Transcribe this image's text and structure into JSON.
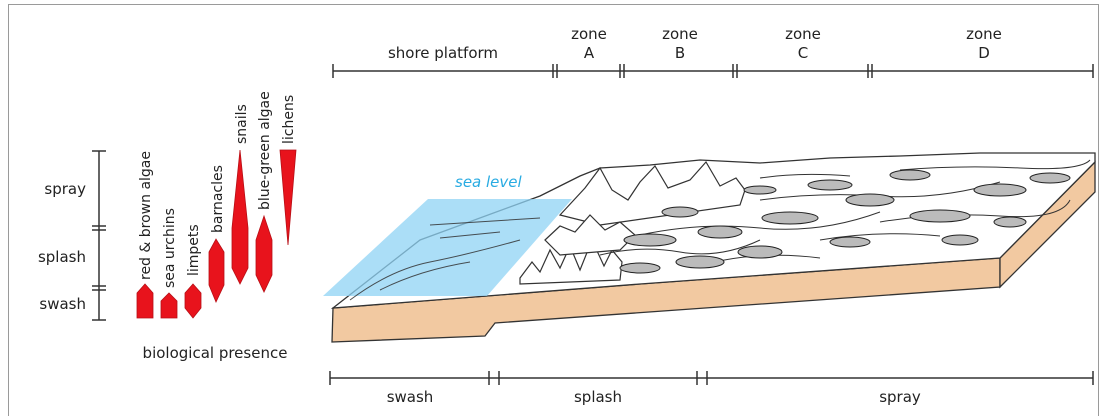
{
  "top_zones": [
    {
      "line1": "",
      "line2": "shore platform"
    },
    {
      "line1": "zone",
      "line2": "A"
    },
    {
      "line1": "zone",
      "line2": "B"
    },
    {
      "line1": "zone",
      "line2": "C"
    },
    {
      "line1": "zone",
      "line2": "D"
    }
  ],
  "bottom_zones": [
    "swash",
    "splash",
    "spray"
  ],
  "left_zones": [
    "spray",
    "splash",
    "swash"
  ],
  "organisms": [
    "red & brown algae",
    "sea urchins",
    "limpets",
    "barnacles",
    "snails",
    "blue-green algae",
    "lichens"
  ],
  "sea_level_label": "sea level",
  "biological_presence_label": "biological presence",
  "colors": {
    "organism": "#e8131c",
    "sea": "#8fd3f4",
    "sea_label": "#29abe2",
    "sediment": "#f2c9a1",
    "line": "#333333"
  }
}
